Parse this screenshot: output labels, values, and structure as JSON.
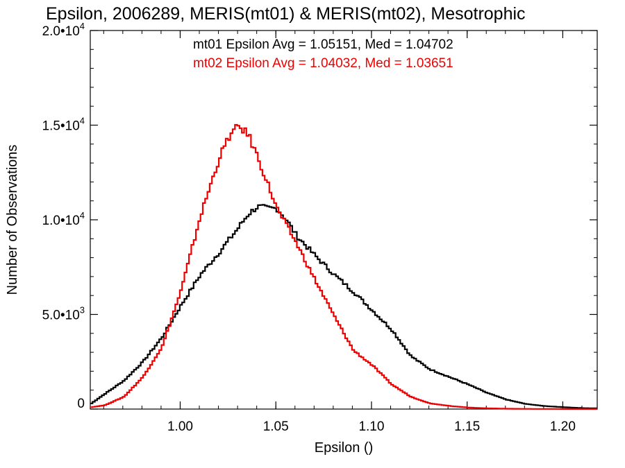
{
  "chart_data": {
    "type": "line",
    "title": "Epsilon, 2006289, MERIS(mt01) & MERIS(mt02), Mesotrophic",
    "xlabel": "Epsilon ()",
    "ylabel": "Number of Observations",
    "xlim": [
      0.953,
      1.218
    ],
    "ylim": [
      0,
      20000
    ],
    "x_ticks": [
      {
        "value": 1.0,
        "label": "1.00"
      },
      {
        "value": 1.05,
        "label": "1.05"
      },
      {
        "value": 1.1,
        "label": "1.10"
      },
      {
        "value": 1.15,
        "label": "1.15"
      },
      {
        "value": 1.2,
        "label": "1.20"
      }
    ],
    "y_ticks": [
      {
        "value": 0,
        "mantissa": "0",
        "exp": ""
      },
      {
        "value": 5000,
        "mantissa": "5.0•10",
        "exp": "3"
      },
      {
        "value": 10000,
        "mantissa": "1.0•10",
        "exp": "4"
      },
      {
        "value": 15000,
        "mantissa": "1.5•10",
        "exp": "4"
      },
      {
        "value": 20000,
        "mantissa": "2.0•10",
        "exp": "4"
      }
    ],
    "grid": false,
    "legend_position": "top-center",
    "annotations": [
      {
        "text": "mt01 Epsilon Avg = 1.05151, Med = 1.04702",
        "color": "#000000"
      },
      {
        "text": "mt02 Epsilon Avg = 1.04032, Med = 1.03651",
        "color": "#ee0000"
      }
    ],
    "series": [
      {
        "color": "#000000",
        "x": [
          0.953,
          0.96,
          0.97,
          0.98,
          0.99,
          1.0,
          1.01,
          1.02,
          1.03,
          1.035,
          1.04,
          1.045,
          1.05,
          1.055,
          1.06,
          1.07,
          1.08,
          1.09,
          1.1,
          1.11,
          1.12,
          1.13,
          1.14,
          1.15,
          1.16,
          1.17,
          1.18,
          1.19,
          1.2,
          1.21,
          1.218
        ],
        "y": [
          300,
          800,
          1500,
          2500,
          3800,
          5500,
          7100,
          8300,
          9600,
          10300,
          10700,
          10600,
          10600,
          10000,
          9200,
          8100,
          7100,
          6200,
          5200,
          4200,
          2800,
          2100,
          1700,
          1300,
          850,
          500,
          270,
          160,
          100,
          50,
          40
        ]
      },
      {
        "color": "#ee0000",
        "x": [
          0.953,
          0.96,
          0.97,
          0.98,
          0.99,
          1.0,
          1.01,
          1.02,
          1.025,
          1.03,
          1.035,
          1.04,
          1.05,
          1.06,
          1.07,
          1.08,
          1.09,
          1.1,
          1.11,
          1.12,
          1.13,
          1.14,
          1.15,
          1.16,
          1.17,
          1.18,
          1.2,
          1.218
        ],
        "y": [
          100,
          200,
          650,
          1700,
          3300,
          6300,
          10200,
          13300,
          14400,
          14950,
          14500,
          13300,
          10600,
          8800,
          6800,
          4900,
          3100,
          2300,
          1300,
          650,
          300,
          170,
          80,
          40,
          20,
          10,
          5,
          3
        ]
      }
    ]
  }
}
